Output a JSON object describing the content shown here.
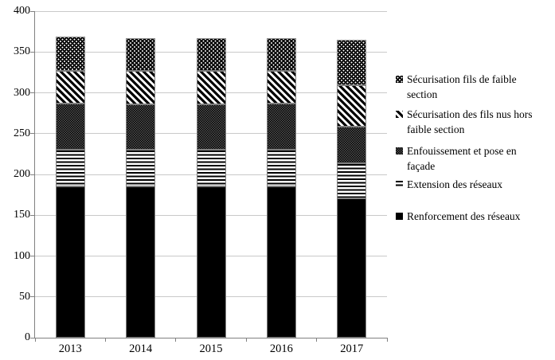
{
  "figure": {
    "background": "#ffffff"
  },
  "colors": {
    "grid": "#c9c9c9",
    "axis": "#808080",
    "bar_outline": "#7f7f7f",
    "ink": "#000000"
  },
  "axes": {
    "y_tick_labels": [
      "0",
      "50",
      "100",
      "150",
      "200",
      "250",
      "300",
      "350",
      "400"
    ],
    "x_tick_labels": [
      "2013",
      "2014",
      "2015",
      "2016",
      "2017"
    ]
  },
  "chart_data": {
    "type": "bar",
    "stacked": true,
    "title": "",
    "xlabel": "",
    "ylabel": "",
    "categories": [
      "2013",
      "2014",
      "2015",
      "2016",
      "2017"
    ],
    "series": [
      {
        "name": "Renforcement des réseaux",
        "pattern": "solid-black",
        "values": [
          185,
          185,
          185,
          185,
          171
        ]
      },
      {
        "name": "Extension des réseaux",
        "pattern": "horizontal-stripes",
        "values": [
          45,
          45,
          45,
          45,
          43
        ]
      },
      {
        "name": "Enfouissement et pose en façade",
        "pattern": "dark-checker",
        "values": [
          57,
          56,
          56,
          57,
          45
        ]
      },
      {
        "name": "Sécurisation des fils nus hors faible section",
        "pattern": "diagonal-stripes",
        "values": [
          40,
          41,
          41,
          40,
          50
        ]
      },
      {
        "name": "Sécurisation fils de  faible section",
        "pattern": "white-dots-on-black",
        "values": [
          42,
          40,
          40,
          40,
          56
        ]
      }
    ],
    "totals": [
      369,
      367,
      367,
      367,
      365
    ],
    "ylim": [
      0,
      400
    ],
    "ytick_step": 50,
    "grid": true,
    "legend_position": "right",
    "legend": [
      {
        "pattern": "white-dots-on-black",
        "lines": [
          "Sécurisation fils de  faible",
          "section"
        ]
      },
      {
        "pattern": "diagonal-stripes",
        "lines": [
          "Sécurisation des fils nus hors",
          "faible section"
        ]
      },
      {
        "pattern": "dark-checker",
        "lines": [
          "Enfouissement et pose en",
          "façade"
        ]
      },
      {
        "pattern": "horizontal-stripes",
        "lines": [
          "Extension des réseaux"
        ]
      },
      {
        "pattern": "solid-black",
        "lines": [
          "Renforcement des réseaux"
        ]
      }
    ]
  }
}
